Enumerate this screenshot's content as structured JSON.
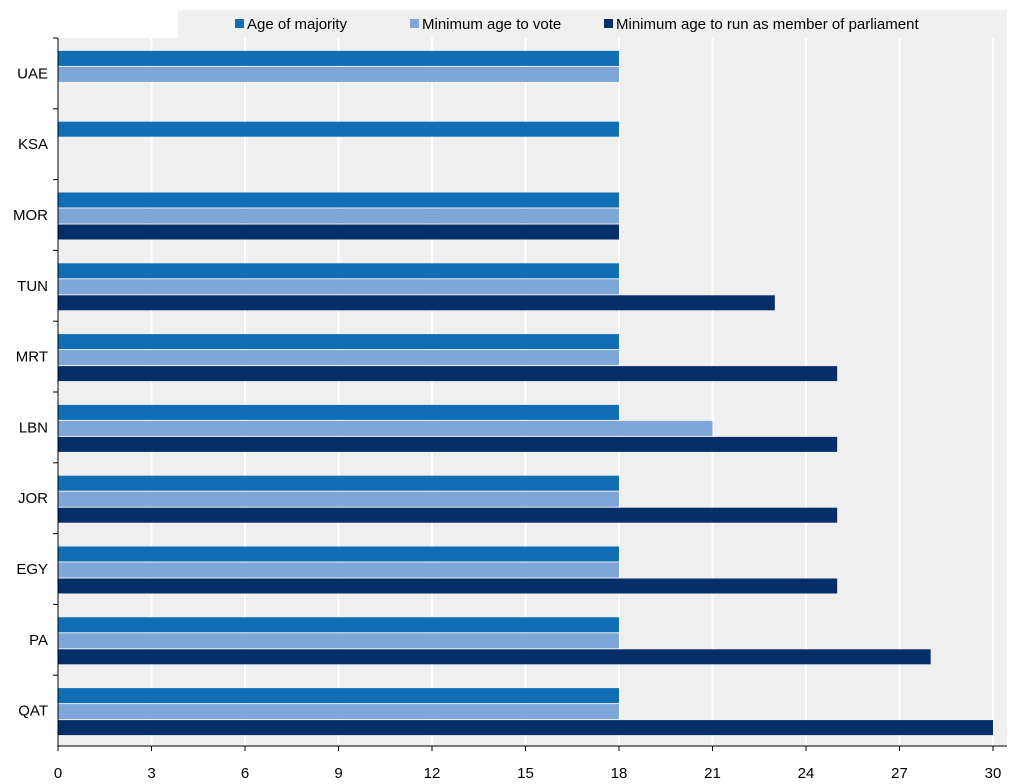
{
  "chart_data": {
    "type": "bar",
    "orientation": "horizontal",
    "categories": [
      "UAE",
      "KSA",
      "MOR",
      "TUN",
      "MRT",
      "LBN",
      "JOR",
      "EGY",
      "PA",
      "QAT"
    ],
    "series": [
      {
        "name": "Age of majority",
        "color": "#0f6eb4",
        "values": [
          18,
          18,
          18,
          18,
          18,
          18,
          18,
          18,
          18,
          18
        ]
      },
      {
        "name": "Minimum age to vote",
        "color": "#7ea6d8",
        "values": [
          18,
          null,
          18,
          18,
          18,
          21,
          18,
          18,
          18,
          18
        ]
      },
      {
        "name": "Minimum age to run as member of parliament",
        "color": "#062f6a",
        "values": [
          null,
          null,
          18,
          23,
          25,
          25,
          25,
          25,
          28,
          30
        ]
      }
    ],
    "xticks": [
      "0",
      "3",
      "6",
      "9",
      "12",
      "15",
      "18",
      "21",
      "24",
      "27",
      "30"
    ],
    "xlim": [
      0,
      30
    ],
    "grid": true,
    "legend_position": "top"
  }
}
